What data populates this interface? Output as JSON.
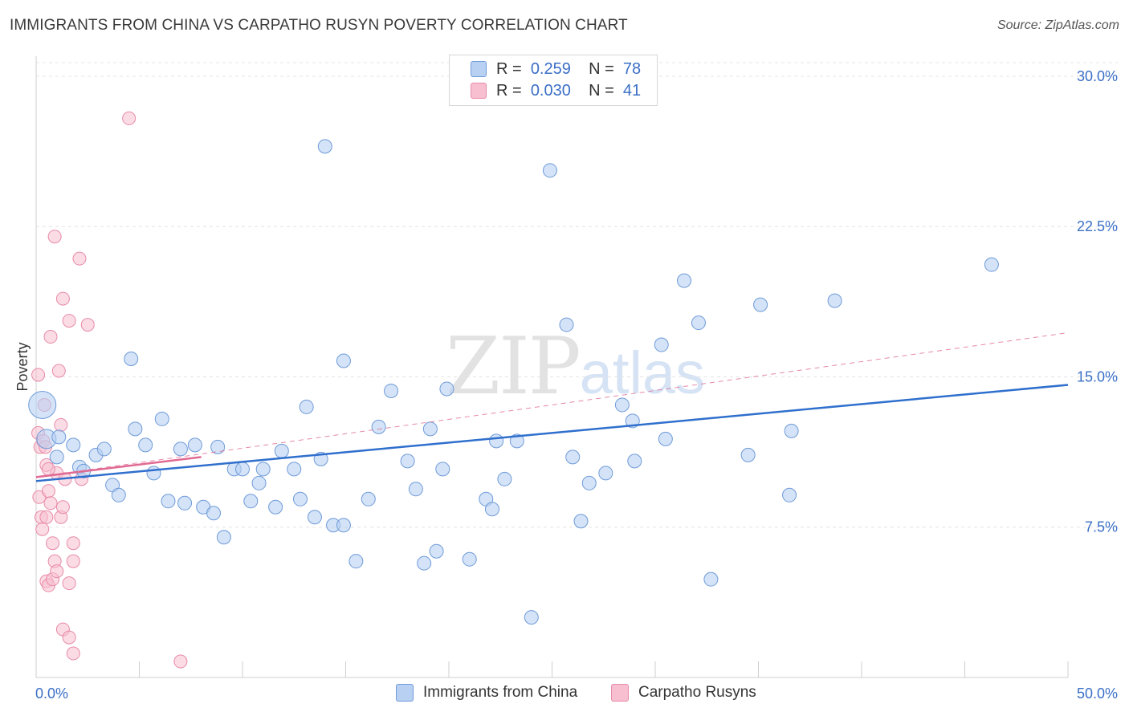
{
  "header": {
    "title": "IMMIGRANTS FROM CHINA VS CARPATHO RUSYN POVERTY CORRELATION CHART",
    "source": "Source: ZipAtlas.com"
  },
  "watermark": {
    "zip": "ZIP",
    "atlas": "atlas"
  },
  "legend": {
    "r_label": "R =",
    "n_label": "N =",
    "rows": [
      {
        "r": "0.259",
        "n": "78"
      },
      {
        "r": "0.030",
        "n": "41"
      }
    ]
  },
  "colors": {
    "china_fill": "#b8d0f2",
    "china_stroke": "#6f9bd9",
    "china_line": "#2f6fcd",
    "rusyn_fill": "#f7bfd0",
    "rusyn_stroke": "#e88aa8",
    "rusyn_line": "#e06a93",
    "tick_label": "#3a6fc6"
  },
  "chart_data": {
    "type": "scatter",
    "title": "IMMIGRANTS FROM CHINA VS CARPATHO RUSYN POVERTY CORRELATION CHART",
    "xlabel": "",
    "ylabel": "Poverty",
    "xlim": [
      0,
      50
    ],
    "ylim": [
      0,
      31
    ],
    "x_tick_labels": [
      "0.0%",
      "50.0%"
    ],
    "y_ticks": [
      7.5,
      15.0,
      22.5,
      30.0
    ],
    "y_tick_labels": [
      "7.5%",
      "15.0%",
      "22.5%",
      "30.0%"
    ],
    "grid": true,
    "series": [
      {
        "name": "Immigrants from China",
        "points": [
          [
            0.3,
            13.6
          ],
          [
            0.5,
            11.9
          ],
          [
            1.0,
            11.0
          ],
          [
            1.1,
            12.0
          ],
          [
            1.8,
            11.6
          ],
          [
            2.1,
            10.5
          ],
          [
            2.3,
            10.3
          ],
          [
            2.9,
            11.1
          ],
          [
            3.3,
            11.4
          ],
          [
            3.7,
            9.6
          ],
          [
            4.0,
            9.1
          ],
          [
            4.6,
            15.9
          ],
          [
            4.8,
            12.4
          ],
          [
            5.3,
            11.6
          ],
          [
            5.7,
            10.2
          ],
          [
            6.1,
            12.9
          ],
          [
            6.4,
            8.8
          ],
          [
            7.0,
            11.4
          ],
          [
            7.2,
            8.7
          ],
          [
            7.7,
            11.6
          ],
          [
            8.1,
            8.5
          ],
          [
            8.6,
            8.2
          ],
          [
            8.8,
            11.5
          ],
          [
            9.1,
            7.0
          ],
          [
            9.6,
            10.4
          ],
          [
            10.0,
            10.4
          ],
          [
            10.4,
            8.8
          ],
          [
            10.8,
            9.7
          ],
          [
            11.0,
            10.4
          ],
          [
            11.6,
            8.5
          ],
          [
            11.9,
            11.3
          ],
          [
            12.5,
            10.4
          ],
          [
            12.8,
            8.9
          ],
          [
            13.1,
            13.5
          ],
          [
            13.5,
            8.0
          ],
          [
            13.8,
            10.9
          ],
          [
            14.0,
            26.5
          ],
          [
            14.4,
            7.6
          ],
          [
            14.9,
            15.8
          ],
          [
            14.9,
            7.6
          ],
          [
            15.5,
            5.8
          ],
          [
            16.1,
            8.9
          ],
          [
            16.6,
            12.5
          ],
          [
            17.2,
            14.3
          ],
          [
            18.0,
            10.8
          ],
          [
            18.4,
            9.4
          ],
          [
            18.8,
            5.7
          ],
          [
            19.1,
            12.4
          ],
          [
            19.4,
            6.3
          ],
          [
            19.7,
            10.4
          ],
          [
            19.9,
            14.4
          ],
          [
            21.0,
            5.9
          ],
          [
            21.8,
            8.9
          ],
          [
            22.1,
            8.4
          ],
          [
            22.3,
            11.8
          ],
          [
            22.7,
            9.9
          ],
          [
            23.3,
            11.8
          ],
          [
            24.0,
            3.0
          ],
          [
            24.9,
            25.3
          ],
          [
            25.7,
            17.6
          ],
          [
            26.0,
            11.0
          ],
          [
            26.4,
            7.8
          ],
          [
            26.8,
            9.7
          ],
          [
            27.6,
            10.2
          ],
          [
            28.4,
            13.6
          ],
          [
            28.9,
            12.8
          ],
          [
            29.0,
            10.8
          ],
          [
            30.3,
            16.6
          ],
          [
            30.5,
            11.9
          ],
          [
            31.4,
            19.8
          ],
          [
            32.1,
            17.7
          ],
          [
            32.7,
            4.9
          ],
          [
            34.5,
            11.1
          ],
          [
            35.1,
            18.6
          ],
          [
            36.5,
            9.1
          ],
          [
            36.6,
            12.3
          ],
          [
            38.7,
            18.8
          ],
          [
            46.3,
            20.6
          ]
        ],
        "sizes": {
          "0.3,13.6": "large",
          "0.5,11.9": "medium"
        }
      },
      {
        "name": "Carpatho Rusyns",
        "points": [
          [
            0.1,
            15.1
          ],
          [
            0.1,
            12.2
          ],
          [
            0.15,
            9.0
          ],
          [
            0.2,
            11.5
          ],
          [
            0.25,
            8.0
          ],
          [
            0.3,
            7.4
          ],
          [
            0.35,
            11.8
          ],
          [
            0.4,
            13.6
          ],
          [
            0.45,
            11.5
          ],
          [
            0.5,
            10.6
          ],
          [
            0.5,
            8.0
          ],
          [
            0.5,
            4.8
          ],
          [
            0.6,
            9.3
          ],
          [
            0.6,
            4.6
          ],
          [
            0.7,
            17.0
          ],
          [
            0.7,
            8.7
          ],
          [
            0.8,
            6.7
          ],
          [
            0.8,
            4.9
          ],
          [
            0.9,
            22.0
          ],
          [
            0.9,
            5.8
          ],
          [
            1.0,
            10.2
          ],
          [
            1.0,
            5.3
          ],
          [
            1.1,
            15.3
          ],
          [
            1.2,
            12.6
          ],
          [
            1.2,
            8.0
          ],
          [
            1.3,
            18.9
          ],
          [
            1.3,
            8.5
          ],
          [
            1.3,
            2.4
          ],
          [
            1.4,
            9.9
          ],
          [
            1.6,
            17.8
          ],
          [
            1.6,
            4.7
          ],
          [
            1.6,
            2.0
          ],
          [
            1.8,
            6.7
          ],
          [
            1.8,
            5.8
          ],
          [
            1.8,
            1.2
          ],
          [
            2.1,
            20.9
          ],
          [
            2.2,
            9.9
          ],
          [
            2.5,
            17.6
          ],
          [
            4.5,
            27.9
          ],
          [
            7.0,
            0.8
          ],
          [
            0.6,
            10.4
          ]
        ]
      }
    ],
    "trend_lines": [
      {
        "series": "Immigrants from China",
        "style": "solid",
        "from": [
          0,
          9.8
        ],
        "to": [
          50,
          14.6
        ]
      },
      {
        "series": "Carpatho Rusyns",
        "style": "solid",
        "from": [
          0,
          10.0
        ],
        "to": [
          8,
          11.0
        ]
      },
      {
        "series": "Carpatho Rusyns",
        "style": "dashed",
        "from": [
          0,
          10.0
        ],
        "to": [
          50,
          17.2
        ]
      }
    ]
  },
  "bottom_legend": [
    {
      "label": "Immigrants from China"
    },
    {
      "label": "Carpatho Rusyns"
    }
  ]
}
